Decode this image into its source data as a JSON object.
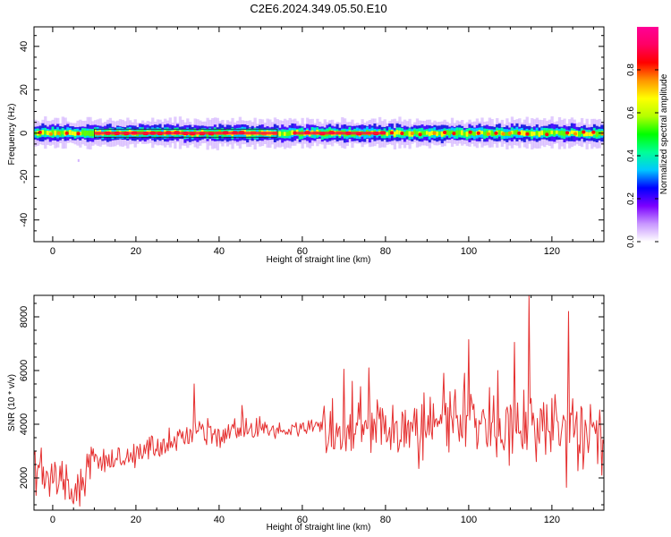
{
  "figure": {
    "title": "C2E6.2024.349.05.50.E10"
  },
  "chart_data": [
    {
      "type": "heatmap",
      "xlabel": "Height of straight line (km)",
      "ylabel": "Frequency (Hz)",
      "xlim": [
        -4.5,
        132.5
      ],
      "ylim": [
        -50,
        49
      ],
      "x_ticks": [
        0,
        20,
        40,
        60,
        80,
        100,
        120
      ],
      "y_ticks": [
        -40,
        -20,
        0,
        20,
        40
      ],
      "ridge_frequency_hz": 0,
      "ridge_extent_hz": [
        -5,
        5
      ],
      "bright_segments_km": [
        [
          10,
          54
        ],
        [
          58,
          80
        ]
      ],
      "grid": false,
      "colorbar": {
        "label": "Normalized spectral amplitude",
        "range": [
          0,
          1
        ],
        "ticks": [
          0.0,
          0.2,
          0.4,
          0.6,
          0.8
        ],
        "colors": [
          "#ffffff",
          "#c896ff",
          "#7b00ff",
          "#0000ff",
          "#00c8ff",
          "#00ff96",
          "#00ff00",
          "#b4ff00",
          "#ffff00",
          "#ff9600",
          "#ff0000",
          "#ff0064",
          "#ff0096"
        ],
        "placement": "right"
      }
    },
    {
      "type": "line",
      "xlabel": "Height of straight line (km)",
      "ylabel": "SNR (10 * v/v)",
      "xlim": [
        -4.5,
        132.5
      ],
      "ylim": [
        800,
        8800
      ],
      "x_ticks": [
        0,
        20,
        40,
        60,
        80,
        100,
        120
      ],
      "y_ticks": [
        2000,
        4000,
        6000,
        8000
      ],
      "color": "#e53030",
      "grid": false,
      "x": [
        -4.5,
        0,
        5,
        10,
        15,
        20,
        25,
        30,
        35,
        40,
        45,
        50,
        55,
        60,
        65,
        70,
        75,
        80,
        85,
        90,
        95,
        100,
        105,
        110,
        115,
        120,
        125,
        130,
        132.5
      ],
      "y": [
        2100,
        2100,
        1600,
        2600,
        2700,
        2950,
        3200,
        3450,
        3650,
        3550,
        3800,
        3850,
        3750,
        3850,
        3900,
        3800,
        3950,
        3800,
        3900,
        3900,
        3950,
        3900,
        3950,
        3900,
        3950,
        3900,
        3750,
        3600,
        3600
      ],
      "peaks": [
        [
          34,
          5500
        ],
        [
          45.5,
          4700
        ],
        [
          70,
          6050
        ],
        [
          72,
          5600
        ],
        [
          74,
          5400
        ],
        [
          76,
          6100
        ],
        [
          88,
          5600
        ],
        [
          94,
          5900
        ],
        [
          99,
          5900
        ],
        [
          100,
          7150
        ],
        [
          107,
          6000
        ],
        [
          111,
          7050
        ],
        [
          114.5,
          8800
        ],
        [
          124,
          8200
        ]
      ],
      "troughs": [
        [
          -4,
          1350
        ],
        [
          1,
          1400
        ],
        [
          3,
          1200
        ],
        [
          6.5,
          950
        ],
        [
          88,
          2350
        ],
        [
          123.5,
          1650
        ]
      ]
    }
  ]
}
